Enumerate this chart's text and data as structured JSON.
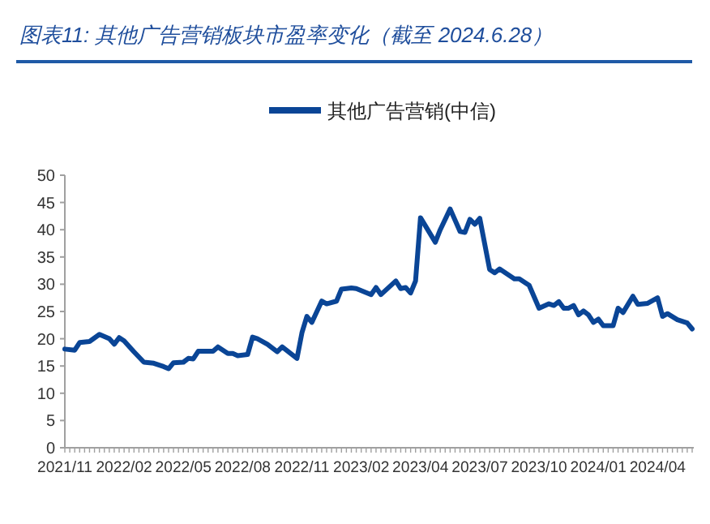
{
  "chart_data": {
    "type": "line",
    "title": "图表11: 其他广告营销板块市盈率变化（截至 2024.6.28）",
    "categories": [
      "2021/11",
      null,
      null,
      null,
      null,
      null,
      null,
      null,
      null,
      null,
      null,
      null,
      "2022/02",
      null,
      null,
      null,
      null,
      null,
      null,
      null,
      null,
      null,
      null,
      null,
      "2022/05",
      null,
      null,
      null,
      null,
      null,
      null,
      null,
      null,
      null,
      null,
      null,
      "2022/08",
      null,
      null,
      null,
      null,
      null,
      null,
      null,
      null,
      null,
      null,
      null,
      "2022/11",
      null,
      null,
      null,
      null,
      null,
      null,
      null,
      null,
      null,
      null,
      null,
      "2023/02",
      null,
      null,
      null,
      null,
      null,
      null,
      null,
      null,
      null,
      null,
      null,
      "2023/04",
      null,
      null,
      null,
      null,
      null,
      null,
      null,
      null,
      null,
      null,
      null,
      "2023/07",
      null,
      null,
      null,
      null,
      null,
      null,
      null,
      null,
      null,
      null,
      null,
      "2023/10",
      null,
      null,
      null,
      null,
      null,
      null,
      null,
      null,
      null,
      null,
      null,
      "2024/01",
      null,
      null,
      null,
      null,
      null,
      null,
      null,
      null,
      null,
      null,
      null,
      "2024/04",
      null,
      null,
      null,
      null,
      null,
      null,
      null
    ],
    "series": [
      {
        "name": "其他广告营销(中信)",
        "color": "#0a4596",
        "values": [
          18.1,
          null,
          17.9,
          19.3,
          null,
          19.5,
          null,
          20.8,
          null,
          20.0,
          19.0,
          20.2,
          19.6,
          null,
          17.6,
          null,
          15.7,
          null,
          15.5,
          null,
          14.9,
          14.5,
          15.6,
          null,
          15.7,
          16.4,
          16.3,
          17.7,
          null,
          null,
          17.7,
          18.5,
          null,
          17.3,
          17.3,
          16.9,
          null,
          17.1,
          20.3,
          20.0,
          null,
          19.0,
          null,
          17.6,
          18.5,
          17.8,
          null,
          16.4,
          21.1,
          24.1,
          23.0,
          null,
          26.9,
          26.4,
          null,
          26.9,
          29.1,
          null,
          29.3,
          29.2,
          null,
          null,
          28.1,
          29.4,
          28.1,
          null,
          null,
          30.6,
          29.2,
          29.4,
          28.4,
          30.6,
          42.2,
          null,
          null,
          37.7,
          40.0,
          null,
          43.8,
          null,
          39.7,
          39.5,
          41.9,
          41.0,
          42.1,
          null,
          32.7,
          32.1,
          32.8,
          null,
          null,
          31.0,
          31.0,
          null,
          29.8,
          null,
          25.6,
          null,
          26.4,
          26.1,
          26.8,
          25.6,
          25.6,
          26.1,
          24.4,
          25.1,
          24.4,
          23.0,
          23.6,
          22.4,
          null,
          22.4,
          25.6,
          24.8,
          null,
          27.8,
          26.3,
          null,
          26.5,
          null,
          27.5,
          24.1,
          24.6,
          null,
          23.5,
          null,
          22.9,
          21.8
        ]
      }
    ],
    "ylim": [
      0,
      50
    ],
    "yticks": [
      0,
      5,
      10,
      15,
      20,
      25,
      30,
      35,
      40,
      45,
      50
    ],
    "legend": "top",
    "grid": false
  }
}
